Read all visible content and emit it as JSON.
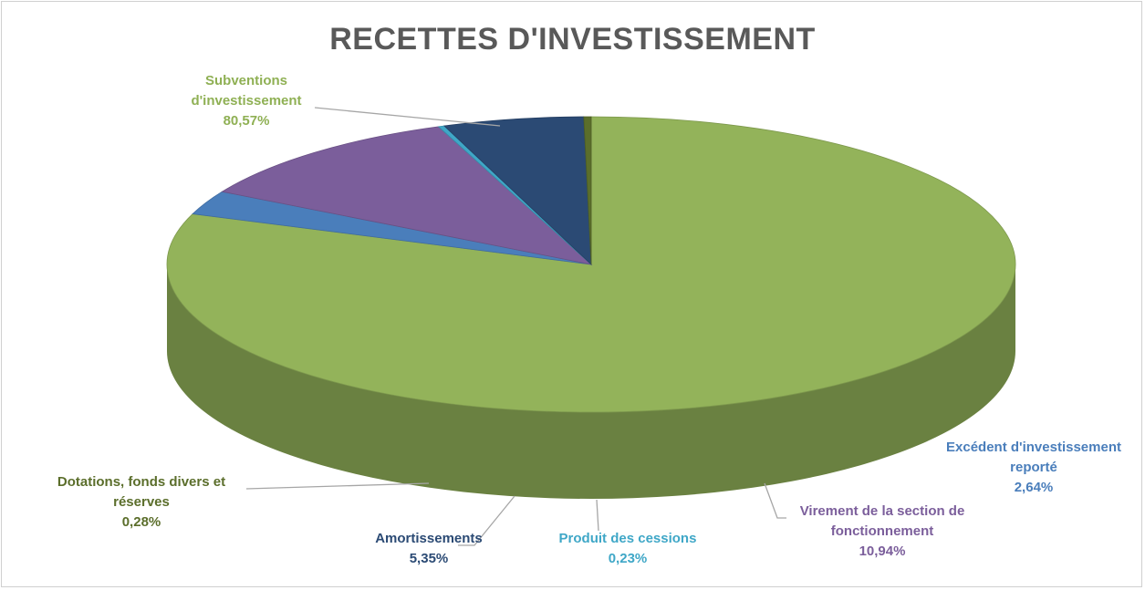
{
  "chart_data": {
    "type": "pie",
    "title": "RECETTES D'INVESTISSEMENT",
    "slices": [
      {
        "label_lines": [
          "Subventions",
          "d'investissement"
        ],
        "value": 80.57,
        "value_label": "80,57%",
        "color": "#93b35a"
      },
      {
        "label_lines": [
          "Excédent d'investissement",
          "reporté"
        ],
        "value": 2.64,
        "value_label": "2,64%",
        "color": "#4a7ebb"
      },
      {
        "label_lines": [
          "Virement de la section de",
          "fonctionnement"
        ],
        "value": 10.94,
        "value_label": "10,94%",
        "color": "#7b5e9b"
      },
      {
        "label_lines": [
          "Produit des cessions"
        ],
        "value": 0.23,
        "value_label": "0,23%",
        "color": "#3fa7c7"
      },
      {
        "label_lines": [
          "Amortissements"
        ],
        "value": 5.35,
        "value_label": "5,35%",
        "color": "#2b4a74"
      },
      {
        "label_lines": [
          "Dotations, fonds divers et",
          "réserves"
        ],
        "value": 0.28,
        "value_label": "0,28%",
        "color": "#5b6e2b"
      }
    ],
    "label_colors": [
      "#8fb054",
      "#4a7ebb",
      "#7b5e9b",
      "#3fa7c7",
      "#2b4a74",
      "#5b6e2b"
    ]
  }
}
